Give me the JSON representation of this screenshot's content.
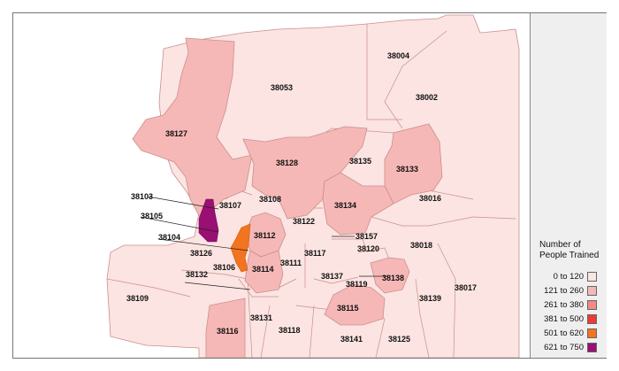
{
  "map": {
    "legend": {
      "title": "Number of\nPeople Trained",
      "items": [
        {
          "label": "0 to 120",
          "color": "#fbe4e2"
        },
        {
          "label": "121 to 260",
          "color": "#f6b8b6"
        },
        {
          "label": "261 to 380",
          "color": "#f08b86"
        },
        {
          "label": "381 to 500",
          "color": "#ee3a35"
        },
        {
          "label": "501 to 620",
          "color": "#f2741f"
        },
        {
          "label": "621 to 750",
          "color": "#990f74"
        }
      ]
    },
    "zip_labels": [
      "38004",
      "38053",
      "38002",
      "38127",
      "38128",
      "38135",
      "38133",
      "38016",
      "38103",
      "38107",
      "38108",
      "38134",
      "38105",
      "38122",
      "38104",
      "38112",
      "38157",
      "38018",
      "38117",
      "38120",
      "38126",
      "38106",
      "38111",
      "38017",
      "38132",
      "38114",
      "38137",
      "38138",
      "38119",
      "38109",
      "38139",
      "38115",
      "38131",
      "38116",
      "38118",
      "38141",
      "38125"
    ]
  }
}
